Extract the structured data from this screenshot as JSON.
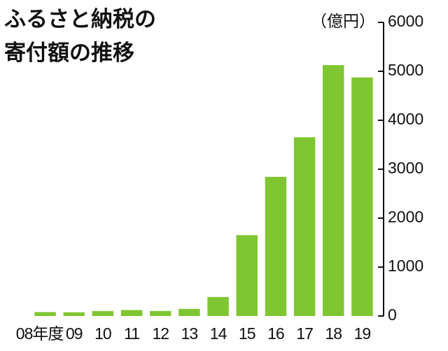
{
  "chart_data": {
    "type": "bar",
    "title": [
      "ふるさと納税の",
      "寄付額の推移"
    ],
    "y_label": "（億円）",
    "categories": [
      "08年度",
      "09",
      "10",
      "11",
      "12",
      "13",
      "14",
      "15",
      "16",
      "17",
      "18",
      "19"
    ],
    "values": [
      81,
      77,
      102,
      122,
      104,
      146,
      389,
      1653,
      2844,
      3653,
      5127,
      4875
    ],
    "color": "#80c632",
    "ylim": [
      0,
      6000
    ],
    "yticks": [
      0,
      1000,
      2000,
      3000,
      4000,
      5000,
      6000
    ],
    "grid": false
  }
}
